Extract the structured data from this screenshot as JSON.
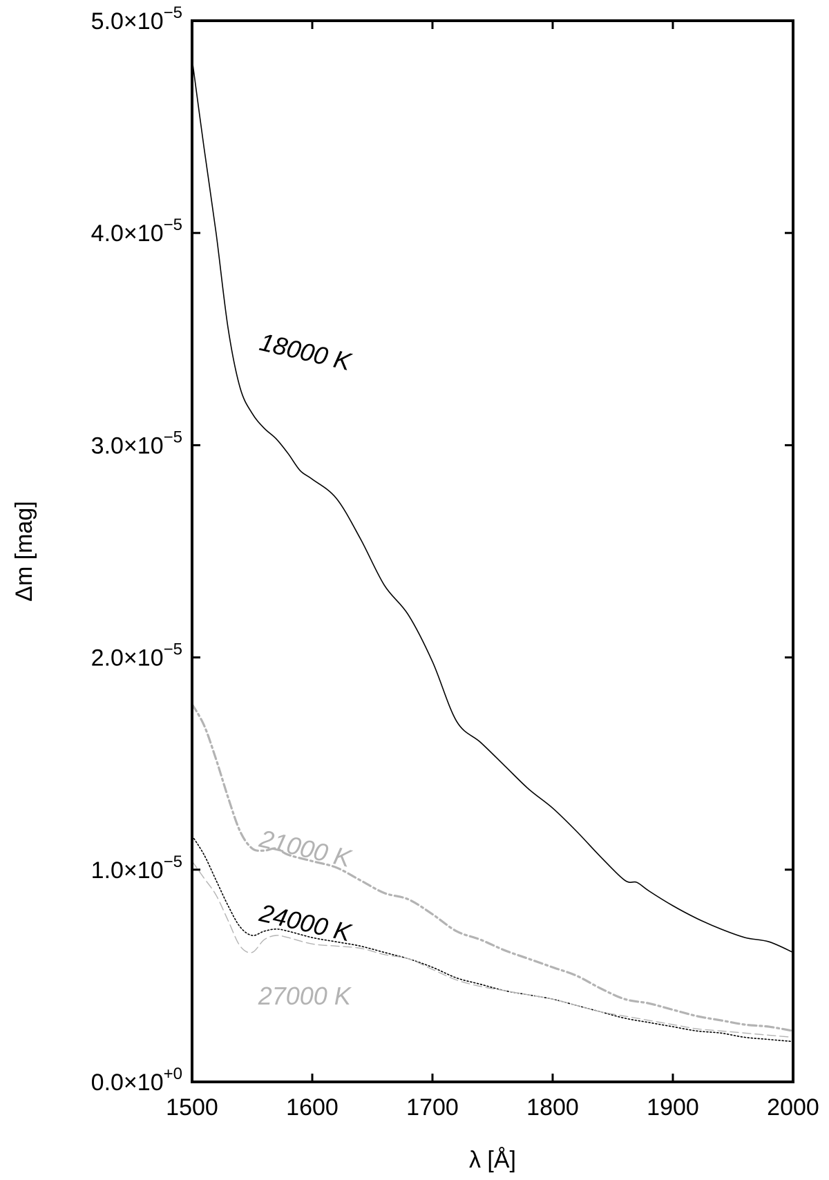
{
  "chart_data": {
    "type": "line",
    "title": "",
    "xlabel": "λ [Å]",
    "ylabel": "Δm [mag]",
    "xlim": [
      1500,
      2000
    ],
    "ylim": [
      0,
      5e-05
    ],
    "grid": false,
    "x_ticks": [
      {
        "value": 1500,
        "label": "1500"
      },
      {
        "value": 1600,
        "label": "1600"
      },
      {
        "value": 1700,
        "label": "1700"
      },
      {
        "value": 1800,
        "label": "1800"
      },
      {
        "value": 1900,
        "label": "1900"
      },
      {
        "value": 2000,
        "label": "2000"
      }
    ],
    "y_ticks": [
      {
        "value": 0,
        "mantissa": "0.0×10",
        "exponent": "+0"
      },
      {
        "value": 1e-05,
        "mantissa": "1.0×10",
        "exponent": "−5"
      },
      {
        "value": 2e-05,
        "mantissa": "2.0×10",
        "exponent": "−5"
      },
      {
        "value": 3e-05,
        "mantissa": "3.0×10",
        "exponent": "−5"
      },
      {
        "value": 4e-05,
        "mantissa": "4.0×10",
        "exponent": "−5"
      },
      {
        "value": 5e-05,
        "mantissa": "5.0×10",
        "exponent": "−5"
      }
    ],
    "series": [
      {
        "label": "18000 K",
        "color": "#000000",
        "style": "solid",
        "x": [
          1500,
          1510,
          1520,
          1530,
          1540,
          1550,
          1560,
          1570,
          1580,
          1590,
          1600,
          1620,
          1640,
          1660,
          1680,
          1700,
          1720,
          1740,
          1760,
          1780,
          1800,
          1820,
          1840,
          1860,
          1870,
          1880,
          1900,
          1920,
          1940,
          1960,
          1980,
          2000
        ],
        "y": [
          4.82e-05,
          4.4e-05,
          4e-05,
          3.55e-05,
          3.27e-05,
          3.15e-05,
          3.08e-05,
          3.03e-05,
          2.96e-05,
          2.88e-05,
          2.84e-05,
          2.75e-05,
          2.56e-05,
          2.34e-05,
          2.2e-05,
          1.98e-05,
          1.7e-05,
          1.6e-05,
          1.49e-05,
          1.38e-05,
          1.29e-05,
          1.18e-05,
          1.06e-05,
          9.5e-06,
          9.4e-06,
          9e-06,
          8.3e-06,
          7.7e-06,
          7.2e-06,
          6.8e-06,
          6.6e-06,
          6.1e-06
        ]
      },
      {
        "label": "21000 K",
        "color": "#b3b3b3",
        "style": "dash-dot",
        "x": [
          1500,
          1510,
          1520,
          1530,
          1540,
          1550,
          1560,
          1570,
          1580,
          1600,
          1620,
          1640,
          1660,
          1680,
          1700,
          1720,
          1740,
          1760,
          1780,
          1800,
          1820,
          1840,
          1860,
          1880,
          1900,
          1920,
          1940,
          1960,
          1980,
          2000
        ],
        "y": [
          1.78e-05,
          1.68e-05,
          1.52e-05,
          1.34e-05,
          1.18e-05,
          1.1e-05,
          1.09e-05,
          1.1e-05,
          1.07e-05,
          1.04e-05,
          1.01e-05,
          9.5e-06,
          8.9e-06,
          8.6e-06,
          7.9e-06,
          7.1e-06,
          6.7e-06,
          6.2e-06,
          5.8e-06,
          5.4e-06,
          5e-06,
          4.4e-06,
          3.9e-06,
          3.7e-06,
          3.4e-06,
          3.1e-06,
          2.9e-06,
          2.7e-06,
          2.6e-06,
          2.4e-06
        ]
      },
      {
        "label": "24000 K",
        "color": "#000000",
        "style": "dotted",
        "x": [
          1500,
          1510,
          1520,
          1530,
          1540,
          1550,
          1560,
          1570,
          1580,
          1600,
          1620,
          1640,
          1660,
          1680,
          1700,
          1720,
          1740,
          1760,
          1780,
          1800,
          1820,
          1840,
          1860,
          1880,
          1900,
          1920,
          1940,
          1960,
          1980,
          2000
        ],
        "y": [
          1.16e-05,
          1.07e-05,
          9.5e-06,
          8.3e-06,
          7.3e-06,
          6.9e-06,
          7.1e-06,
          7.2e-06,
          7.1e-06,
          6.8e-06,
          6.6e-06,
          6.4e-06,
          6.1e-06,
          5.8e-06,
          5.4e-06,
          4.9e-06,
          4.6e-06,
          4.3e-06,
          4.1e-06,
          3.9e-06,
          3.6e-06,
          3.3e-06,
          3e-06,
          2.8e-06,
          2.6e-06,
          2.4e-06,
          2.3e-06,
          2.1e-06,
          2e-06,
          1.9e-06
        ]
      },
      {
        "label": "27000 K",
        "color": "#b3b3b3",
        "style": "dashed",
        "x": [
          1500,
          1510,
          1520,
          1530,
          1540,
          1550,
          1560,
          1570,
          1580,
          1600,
          1620,
          1640,
          1660,
          1680,
          1700,
          1720,
          1740,
          1760,
          1780,
          1800,
          1820,
          1840,
          1860,
          1880,
          1900,
          1920,
          1940,
          1960,
          1980,
          2000
        ],
        "y": [
          1.04e-05,
          9.6e-06,
          8.8e-06,
          7.6e-06,
          6.4e-06,
          6.1e-06,
          6.7e-06,
          6.9e-06,
          6.8e-06,
          6.5e-06,
          6.4e-06,
          6.3e-06,
          6e-06,
          5.8e-06,
          5.3e-06,
          4.8e-06,
          4.5e-06,
          4.3e-06,
          4.1e-06,
          3.9e-06,
          3.6e-06,
          3.3e-06,
          3.1e-06,
          2.9e-06,
          2.7e-06,
          2.5e-06,
          2.4e-06,
          2.3e-06,
          2.2e-06,
          2.1e-06
        ]
      }
    ],
    "annotations": [
      {
        "text": "18000 K",
        "color": "#000000",
        "at": [
          1555,
          3.45e-05
        ],
        "rotation": 13
      },
      {
        "text": "21000 K",
        "color": "#b3b3b3",
        "at": [
          1555,
          1.11e-05
        ],
        "rotation": 13
      },
      {
        "text": "24000 K",
        "color": "#000000",
        "at": [
          1555,
          7.6e-06
        ],
        "rotation": 13
      },
      {
        "text": "27000 K",
        "color": "#b3b3b3",
        "at": [
          1555,
          3.65e-06
        ],
        "rotation": 0
      }
    ]
  }
}
